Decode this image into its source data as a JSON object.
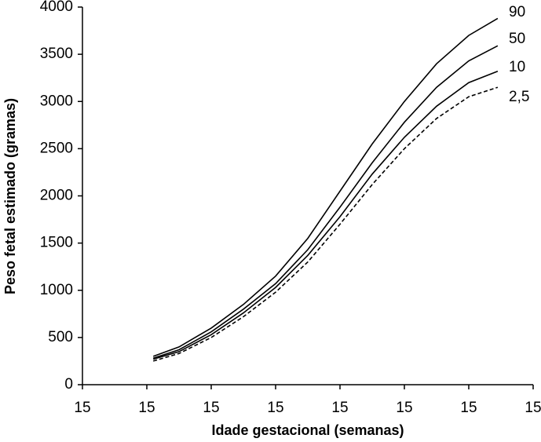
{
  "chart_data": {
    "type": "line",
    "x_label": "Idade gestacional (semanas)",
    "y_label": "Peso fetal estimado (gramas)",
    "x": [
      1.1,
      1.5,
      2,
      2.5,
      3,
      3.5,
      4,
      4.5,
      5,
      5.5,
      6,
      6.45
    ],
    "series": [
      {
        "name": "90",
        "color": "#000000",
        "dashed": false,
        "values": [
          300,
          400,
          600,
          850,
          1150,
          1550,
          2050,
          2550,
          3000,
          3400,
          3700,
          3880
        ]
      },
      {
        "name": "50",
        "color": "#000000",
        "dashed": false,
        "values": [
          280,
          370,
          560,
          800,
          1070,
          1430,
          1880,
          2350,
          2780,
          3150,
          3430,
          3590
        ]
      },
      {
        "name": "10",
        "color": "#000000",
        "dashed": false,
        "values": [
          270,
          350,
          530,
          760,
          1030,
          1370,
          1780,
          2230,
          2620,
          2950,
          3200,
          3320
        ]
      },
      {
        "name": "2,5",
        "color": "#000000",
        "dashed": true,
        "values": [
          250,
          330,
          500,
          720,
          980,
          1300,
          1700,
          2120,
          2500,
          2820,
          3050,
          3150
        ]
      }
    ],
    "xlim": [
      0,
      7
    ],
    "xticks": [
      {
        "value": 0,
        "label": "15"
      },
      {
        "value": 1,
        "label": "15"
      },
      {
        "value": 2,
        "label": "15"
      },
      {
        "value": 3,
        "label": "15"
      },
      {
        "value": 4,
        "label": "15"
      },
      {
        "value": 5,
        "label": "15"
      },
      {
        "value": 6,
        "label": "15"
      },
      {
        "value": 7,
        "label": "15"
      }
    ],
    "ylim": [
      0,
      4000
    ],
    "yticks": [
      0,
      500,
      1000,
      1500,
      2000,
      2500,
      3000,
      3500,
      4000
    ],
    "grid": false
  }
}
